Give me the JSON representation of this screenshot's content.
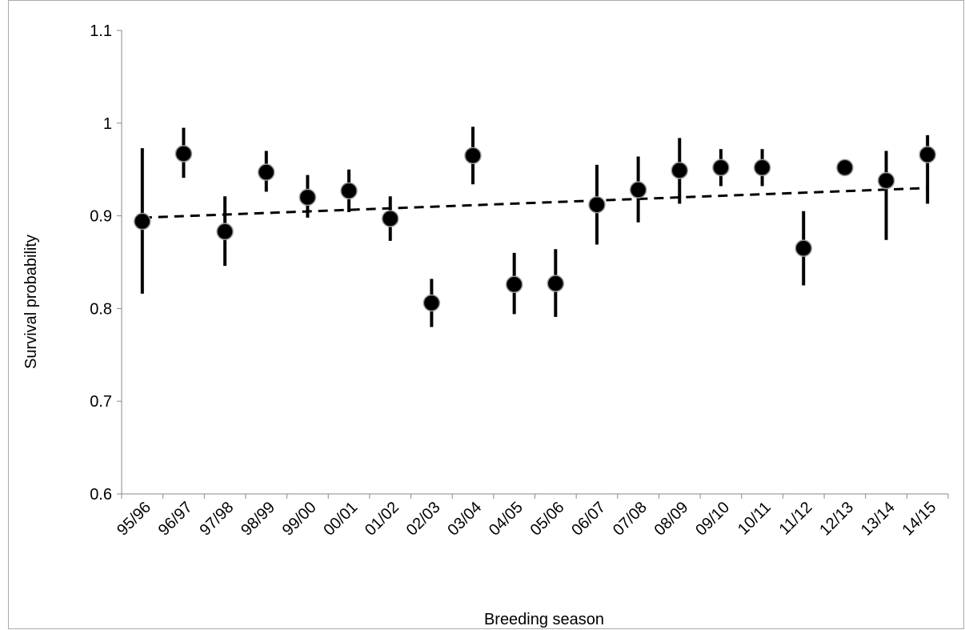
{
  "chart_data": {
    "type": "scatter",
    "x_label": "Breeding season",
    "y_label": "Survival probability",
    "categories": [
      "95/96",
      "96/97",
      "97/98",
      "98/99",
      "99/00",
      "00/01",
      "01/02",
      "02/03",
      "03/04",
      "04/05",
      "05/06",
      "06/07",
      "07/08",
      "08/09",
      "09/10",
      "10/11",
      "11/12",
      "12/13",
      "13/14",
      "14/15"
    ],
    "series": [
      {
        "color": "#000000",
        "values": [
          0.894,
          0.967,
          0.883,
          0.947,
          0.92,
          0.927,
          0.897,
          0.806,
          0.965,
          0.826,
          0.827,
          0.912,
          0.928,
          0.949,
          0.952,
          0.952,
          0.865,
          0.952,
          0.938,
          0.966
        ],
        "upper": [
          0.973,
          0.995,
          0.921,
          0.97,
          0.944,
          0.95,
          0.921,
          0.832,
          0.996,
          0.86,
          0.864,
          0.955,
          0.964,
          0.984,
          0.972,
          0.972,
          0.905,
          0.958,
          0.97,
          0.987
        ],
        "lower": [
          0.816,
          0.941,
          0.846,
          0.926,
          0.898,
          0.904,
          0.873,
          0.78,
          0.934,
          0.794,
          0.791,
          0.869,
          0.893,
          0.913,
          0.932,
          0.932,
          0.825,
          0.946,
          0.874,
          0.913
        ]
      }
    ],
    "trendline": {
      "values": [
        0.898,
        0.93
      ],
      "color": "#000000",
      "dashed": true
    },
    "ylim": [
      0.6,
      1.1
    ],
    "yticks": [
      0.6,
      0.7,
      0.8,
      0.9,
      1,
      1.1
    ],
    "grid": false
  }
}
